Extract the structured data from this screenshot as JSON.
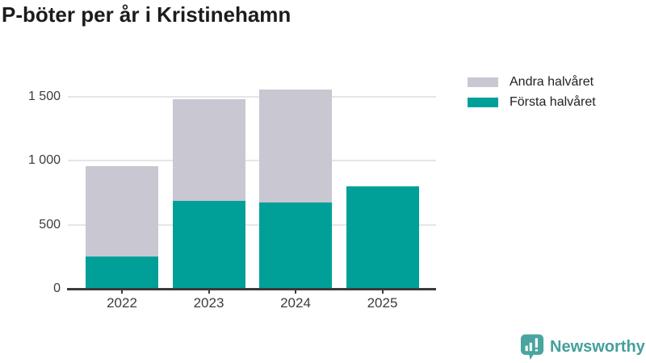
{
  "title": "P-böter per år i Kristinehamn",
  "legend": {
    "items": [
      {
        "label": "Andra halvåret",
        "color": "#c9c7d1"
      },
      {
        "label": "Första halvåret",
        "color": "#00a099"
      }
    ]
  },
  "colors": {
    "first_half": "#00a099",
    "second_half": "#c9c7d1",
    "grid": "#e6e6e6",
    "axis": "#3b3b3b",
    "tick_text": "#3d3d3d",
    "title_text": "#1c1c1c",
    "brand": "#43a09b"
  },
  "chart_data": {
    "type": "bar",
    "stacked": true,
    "title": "P-böter per år i Kristinehamn",
    "categories": [
      "2022",
      "2023",
      "2024",
      "2025"
    ],
    "series": [
      {
        "name": "Första halvåret",
        "color": "#00a099",
        "values": [
          250,
          690,
          675,
          800
        ]
      },
      {
        "name": "Andra halvåret",
        "color": "#c9c7d1",
        "values": [
          710,
          790,
          885,
          0
        ]
      }
    ],
    "totals": [
      960,
      1480,
      1560,
      800
    ],
    "xlabel": "",
    "ylabel": "",
    "ylim": [
      0,
      1600
    ],
    "yticks": [
      0,
      500,
      1000,
      1500
    ],
    "ytick_labels": [
      "0",
      "500",
      "1 000",
      "1 500"
    ],
    "grid": true,
    "legend_position": "top-right"
  },
  "footer": {
    "brand": "Newsworthy",
    "logo_icon": "bar-chart-speech-bubble-icon"
  }
}
